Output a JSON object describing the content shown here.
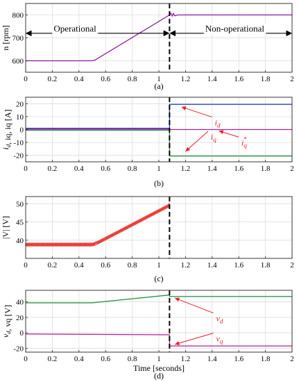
{
  "chart_data": [
    {
      "type": "line",
      "caption": "(a)",
      "ylabel": "n [rpm]",
      "xlim": [
        0,
        2
      ],
      "ylim": [
        550,
        850
      ],
      "yticks": [
        600,
        700,
        800
      ],
      "xticks": [
        0,
        0.2,
        0.4,
        0.6,
        0.8,
        1,
        1.2,
        1.4,
        1.6,
        1.8,
        2
      ],
      "xtick_labels": [
        "0",
        "0.2",
        "0.4",
        "0.6",
        "0.8",
        "1",
        "1.2",
        "1.4",
        "1.6",
        "1.8",
        "2"
      ],
      "grid": true,
      "series": [
        {
          "color": "#8B1A9E",
          "x": [
            0,
            0.5,
            0.52,
            1.08,
            1.09,
            1.1,
            1.11,
            1.12,
            1.14,
            1.2,
            2
          ],
          "y": [
            600,
            600,
            603,
            800,
            808,
            795,
            806,
            796,
            800,
            800,
            800
          ]
        }
      ],
      "vline": {
        "x": 1.08
      },
      "annotations": [
        {
          "text": "Operational",
          "x": 0.37,
          "y": 742
        },
        {
          "text": "Non-operational",
          "x": 1.57,
          "y": 742
        }
      ],
      "arrows": [
        {
          "from": [
            0,
            720
          ],
          "to": [
            1.08,
            720
          ]
        },
        {
          "from": [
            1.08,
            720
          ],
          "to": [
            2,
            720
          ]
        }
      ]
    },
    {
      "type": "line",
      "caption": "(b)",
      "ylabel": "i_d, i_q, i*_q [A]",
      "xlim": [
        0,
        2
      ],
      "ylim": [
        -25,
        25
      ],
      "yticks": [
        -20,
        -10,
        0,
        10,
        20
      ],
      "xticks": [
        0,
        0.2,
        0.4,
        0.6,
        0.8,
        1,
        1.2,
        1.4,
        1.6,
        1.8,
        2
      ],
      "xtick_labels": [
        "0",
        "0.2",
        "0.4",
        "0.6",
        "0.8",
        "1",
        "1.2",
        "1.4",
        "1.6",
        "1.8",
        "2"
      ],
      "grid": true,
      "series": [
        {
          "label": "i_d",
          "color": "#1F3FD0",
          "x": [
            0,
            1.08,
            1.08,
            2
          ],
          "y": [
            1,
            1,
            19.5,
            19.5
          ]
        },
        {
          "label": "i_q",
          "color": "#1E8E3E",
          "x": [
            0,
            1.08,
            1.08,
            2
          ],
          "y": [
            -0.5,
            -0.5,
            -20.5,
            -20.5
          ]
        },
        {
          "label": "i*_q",
          "color": "#B0208A",
          "x": [
            0,
            1.08,
            1.08,
            2
          ],
          "y": [
            0.3,
            0.3,
            0,
            0
          ]
        }
      ],
      "vline": {
        "x": 1.08
      },
      "annotations": [
        {
          "label": "i_d",
          "text": "i",
          "sub": "d",
          "x": 1.42,
          "y": 7.5,
          "arrow_to": [
            1.17,
            17.5
          ]
        },
        {
          "label": "i*_q",
          "text": "i",
          "sub": "q",
          "sup": "*",
          "x": 1.62,
          "y": -8,
          "arrow_to": [
            1.45,
            -1
          ]
        },
        {
          "label": "i_q",
          "text": "i",
          "sub": "q",
          "x": 1.39,
          "y": -3.5,
          "arrow_to": [
            1.2,
            -17
          ]
        }
      ]
    },
    {
      "type": "line",
      "caption": "(c)",
      "ylabel": "|V| [V]",
      "xlim": [
        0,
        2
      ],
      "ylim": [
        35,
        52
      ],
      "yticks": [
        40,
        45,
        50
      ],
      "xticks": [
        0,
        0.2,
        0.4,
        0.6,
        0.8,
        1,
        1.2,
        1.4,
        1.6,
        1.8,
        2
      ],
      "xtick_labels": [
        "0",
        "0.2",
        "0.4",
        "0.6",
        "0.8",
        "1",
        "1.2",
        "1.4",
        "1.6",
        "1.8",
        "2"
      ],
      "grid": true,
      "series": [
        {
          "color": "#E8403A",
          "x": [
            0,
            0.5,
            0.53,
            1.08
          ],
          "y": [
            38.8,
            38.8,
            39.1,
            49.6
          ],
          "ripple": 0.5
        }
      ],
      "vline": {
        "x": 1.08
      }
    },
    {
      "type": "line",
      "caption": "(d)",
      "ylabel": "v_d, v_q [V]",
      "xlabel": "Time [seconds]",
      "xlim": [
        0,
        2
      ],
      "ylim": [
        -25,
        55
      ],
      "yticks": [
        -20,
        0,
        20,
        40
      ],
      "xticks": [
        0,
        0.2,
        0.4,
        0.6,
        0.8,
        1,
        1.2,
        1.4,
        1.6,
        1.8,
        2
      ],
      "xtick_labels": [
        "0",
        "0.2",
        "0.4",
        "0.6",
        "0.8",
        "1",
        "1.2",
        "1.4",
        "1.6",
        "1.8",
        "2"
      ],
      "grid": true,
      "series": [
        {
          "label": "v_d",
          "color": "#1E8E3E",
          "x": [
            0,
            0.5,
            1.08,
            1.08,
            2
          ],
          "y": [
            38.8,
            38.8,
            49,
            47,
            47
          ]
        },
        {
          "label": "v_q",
          "color": "#B0208A",
          "x": [
            0,
            1.08,
            1.08,
            2
          ],
          "y": [
            -1.5,
            -2.5,
            -17,
            -17
          ]
        }
      ],
      "vline": {
        "x": 1.08
      },
      "annotations": [
        {
          "label": "v_d",
          "text": "v",
          "sub": "d",
          "x": 1.43,
          "y": 22,
          "arrow_to": [
            1.12,
            45
          ]
        },
        {
          "label": "v_q",
          "text": "v",
          "sub": "q",
          "x": 1.43,
          "y": -4,
          "arrow_to": [
            1.12,
            -15
          ]
        }
      ]
    }
  ]
}
